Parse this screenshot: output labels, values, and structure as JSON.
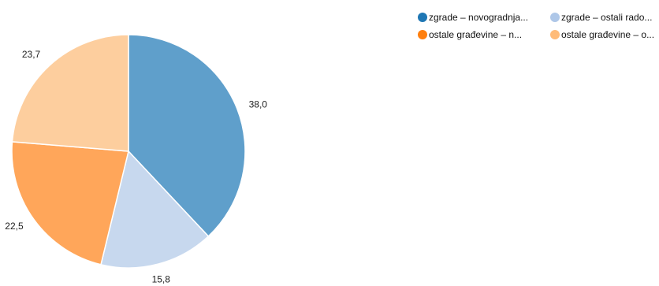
{
  "chart_data": {
    "type": "pie",
    "series": [
      {
        "name": "zgrade – novogradnja...",
        "value": 38.0,
        "label": "38,0",
        "color": "#5F9FCB",
        "legend_color": "#1F77B4"
      },
      {
        "name": "zgrade – ostali rado...",
        "value": 15.8,
        "label": "15,8",
        "color": "#C7D8EE",
        "legend_color": "#AEC7E8"
      },
      {
        "name": "ostale građevine – n...",
        "value": 22.5,
        "label": "22,5",
        "color": "#FFA65A",
        "legend_color": "#FF7F0E"
      },
      {
        "name": "ostale građevine – o...",
        "value": 23.7,
        "label": "23,7",
        "color": "#FDCE9E",
        "legend_color": "#FFBB78"
      }
    ],
    "legend_position": "top-right"
  }
}
